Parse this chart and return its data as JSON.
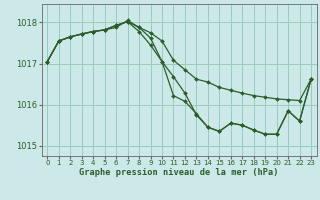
{
  "title": "Graphe pression niveau de la mer (hPa)",
  "bg_color": "#cce8e8",
  "grid_color": "#99ccbb",
  "line_color": "#2a5e2a",
  "marker_color": "#2a5e2a",
  "ylim": [
    1014.75,
    1018.45
  ],
  "yticks": [
    1015,
    1016,
    1017,
    1018
  ],
  "xlim": [
    -0.5,
    23.5
  ],
  "xticks": [
    0,
    1,
    2,
    3,
    4,
    5,
    6,
    7,
    8,
    9,
    10,
    11,
    12,
    13,
    14,
    15,
    16,
    17,
    18,
    19,
    20,
    21,
    22,
    23
  ],
  "series1_x": [
    0,
    1,
    2,
    3,
    4,
    5,
    6,
    7,
    8,
    9,
    10,
    11,
    12,
    13,
    14,
    15,
    16,
    17,
    18,
    19,
    20,
    21,
    22,
    23
  ],
  "series1_y": [
    1017.05,
    1017.55,
    1017.65,
    1017.72,
    1017.78,
    1017.82,
    1017.88,
    1018.05,
    1017.88,
    1017.75,
    1017.55,
    1017.08,
    1016.85,
    1016.62,
    1016.55,
    1016.42,
    1016.35,
    1016.28,
    1016.22,
    1016.18,
    1016.14,
    1016.12,
    1016.1,
    1016.62
  ],
  "series2_x": [
    0,
    1,
    2,
    3,
    4,
    5,
    6,
    7,
    8,
    9,
    10,
    11,
    12,
    13,
    14,
    15,
    16,
    17,
    18,
    19,
    20,
    21,
    22,
    23
  ],
  "series2_y": [
    1017.05,
    1017.55,
    1017.65,
    1017.72,
    1017.78,
    1017.82,
    1017.93,
    1018.02,
    1017.88,
    1017.62,
    1017.05,
    1016.68,
    1016.28,
    1015.75,
    1015.45,
    1015.35,
    1015.55,
    1015.5,
    1015.38,
    1015.28,
    1015.28,
    1015.85,
    1015.6,
    1016.62
  ],
  "series3_x": [
    0,
    1,
    2,
    3,
    4,
    5,
    6,
    7,
    8,
    9,
    10,
    11,
    12,
    13,
    14,
    15,
    16,
    17,
    18,
    19,
    20,
    21,
    22,
    23
  ],
  "series3_y": [
    1017.05,
    1017.55,
    1017.65,
    1017.72,
    1017.78,
    1017.82,
    1017.93,
    1018.02,
    1017.78,
    1017.45,
    1017.05,
    1016.22,
    1016.08,
    1015.78,
    1015.45,
    1015.35,
    1015.55,
    1015.5,
    1015.38,
    1015.28,
    1015.28,
    1015.85,
    1015.6,
    1016.62
  ]
}
